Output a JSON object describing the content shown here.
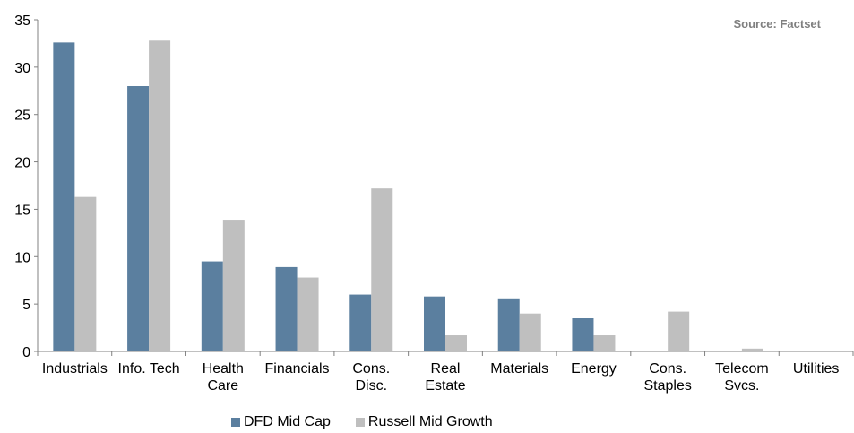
{
  "source_label": "Source: Factset",
  "chart_data": {
    "type": "bar",
    "categories": [
      [
        "Industrials"
      ],
      [
        "Info. Tech"
      ],
      [
        "Health",
        "Care"
      ],
      [
        "Financials"
      ],
      [
        "Cons.",
        "Disc."
      ],
      [
        "Real",
        "Estate"
      ],
      [
        "Materials"
      ],
      [
        "Energy"
      ],
      [
        "Cons.",
        "Staples"
      ],
      [
        "Telecom",
        "Svcs."
      ],
      [
        "Utilities"
      ]
    ],
    "series": [
      {
        "name": "DFD Mid Cap",
        "color": "#5b7f9f",
        "values": [
          32.6,
          28.0,
          9.5,
          8.9,
          6.0,
          5.8,
          5.6,
          3.5,
          0,
          0,
          0
        ]
      },
      {
        "name": "Russell Mid Growth",
        "color": "#bfbfbf",
        "values": [
          16.3,
          32.8,
          13.9,
          7.8,
          17.2,
          1.7,
          4.0,
          1.7,
          4.2,
          0.3,
          0
        ]
      }
    ],
    "ylim": [
      0,
      35
    ],
    "yticks": [
      0,
      5,
      10,
      15,
      20,
      25,
      30,
      35
    ],
    "grid": false,
    "legend_position": "bottom"
  }
}
